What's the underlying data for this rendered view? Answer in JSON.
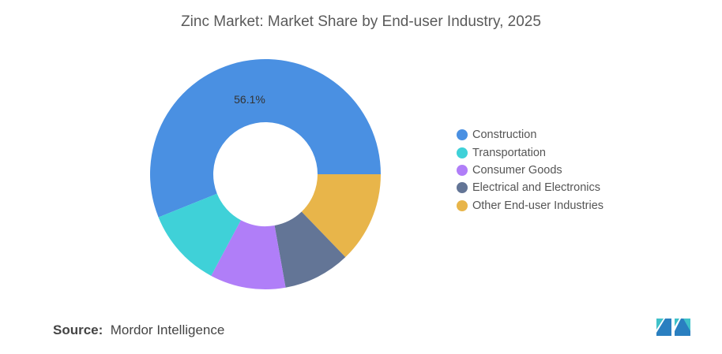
{
  "chart_data": {
    "type": "pie",
    "variant": "donut",
    "title": "Zinc Market: Market Share by End-user Industry, 2025",
    "categories": [
      "Construction",
      "Transportation",
      "Consumer Goods",
      "Electrical and Electronics",
      "Other End-user Industries"
    ],
    "values": [
      56.1,
      11.1,
      10.6,
      9.4,
      12.8
    ],
    "data_labels": [
      "56.1%",
      "",
      "",
      "",
      ""
    ],
    "colors": [
      "#4a90e2",
      "#3fd1d8",
      "#b07ef8",
      "#637596",
      "#e8b54a"
    ],
    "legend_position": "right"
  },
  "source": {
    "label": "Source:",
    "text": "Mordor Intelligence"
  },
  "logo": "mordor-intelligence-logo"
}
